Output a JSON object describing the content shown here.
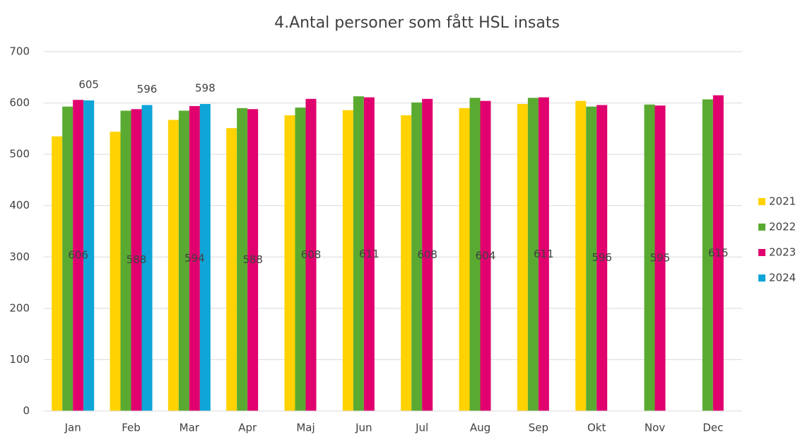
{
  "chart_data": {
    "type": "bar",
    "title": "4.Antal personer som fått HSL insats",
    "categories": [
      "Jan",
      "Feb",
      "Mar",
      "Apr",
      "Maj",
      "Jun",
      "Jul",
      "Aug",
      "Sep",
      "Okt",
      "Nov",
      "Dec"
    ],
    "series": [
      {
        "name": "2021",
        "color": "#ffd200",
        "values": [
          535,
          544,
          567,
          551,
          576,
          586,
          576,
          590,
          598,
          604,
          null,
          null
        ]
      },
      {
        "name": "2022",
        "color": "#5aaa32",
        "values": [
          593,
          585,
          585,
          590,
          591,
          613,
          601,
          610,
          610,
          593,
          597,
          607
        ]
      },
      {
        "name": "2023",
        "color": "#e0006e",
        "values": [
          606,
          588,
          594,
          588,
          608,
          611,
          608,
          604,
          611,
          596,
          595,
          615
        ],
        "data_labels": "center"
      },
      {
        "name": "2024",
        "color": "#0fa5d8",
        "values": [
          605,
          596,
          598,
          null,
          null,
          null,
          null,
          null,
          null,
          null,
          null,
          null
        ],
        "data_labels": "outside_end"
      }
    ],
    "ylim": [
      0,
      700
    ],
    "yticks": [
      0,
      100,
      200,
      300,
      400,
      500,
      600,
      700
    ],
    "grid": true,
    "legend": "right"
  }
}
